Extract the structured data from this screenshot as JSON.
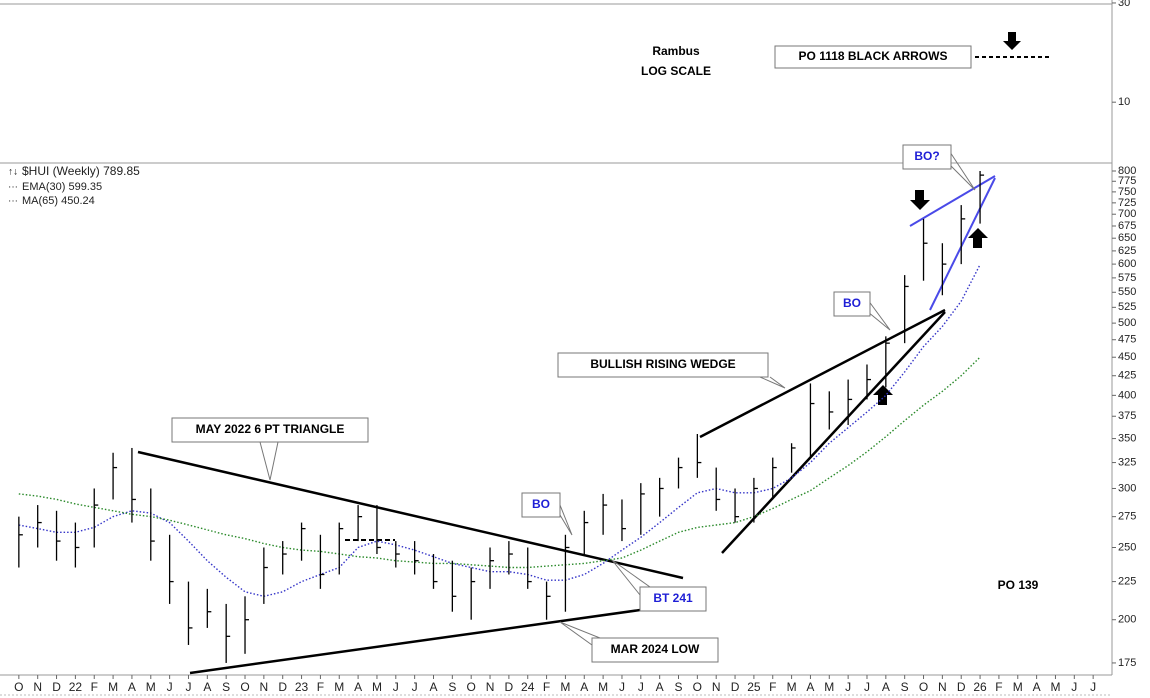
{
  "chart_data": [
    {
      "type": "indicator",
      "log_scale": true,
      "ylim": [
        5.1,
        31
      ],
      "yticks": [
        10,
        30
      ],
      "annotations": [
        "Rambus",
        "LOG SCALE",
        "PO 1118 BLACK ARROWS"
      ]
    },
    {
      "type": "hlc",
      "log_scale": true,
      "ylim": [
        168.6,
        820
      ],
      "yticks": [
        175,
        200,
        225,
        250,
        275,
        300,
        325,
        350,
        375,
        400,
        425,
        450,
        475,
        500,
        525,
        550,
        575,
        600,
        625,
        650,
        675,
        700,
        725,
        750,
        775,
        800
      ],
      "xlim": [
        "2021-09",
        "2026-08"
      ],
      "xticks": [
        {
          "value": "2021-10",
          "label": "O"
        },
        {
          "value": "2021-11",
          "label": "N"
        },
        {
          "value": "2021-12",
          "label": "D"
        },
        {
          "value": "2022-01",
          "label": "22"
        },
        {
          "value": "2022-02",
          "label": "F"
        },
        {
          "value": "2022-03",
          "label": "M"
        },
        {
          "value": "2022-04",
          "label": "A"
        },
        {
          "value": "2022-05",
          "label": "M"
        },
        {
          "value": "2022-06",
          "label": "J"
        },
        {
          "value": "2022-07",
          "label": "J"
        },
        {
          "value": "2022-08",
          "label": "A"
        },
        {
          "value": "2022-09",
          "label": "S"
        },
        {
          "value": "2022-10",
          "label": "O"
        },
        {
          "value": "2022-11",
          "label": "N"
        },
        {
          "value": "2022-12",
          "label": "D"
        },
        {
          "value": "2023-01",
          "label": "23"
        },
        {
          "value": "2023-02",
          "label": "F"
        },
        {
          "value": "2023-03",
          "label": "M"
        },
        {
          "value": "2023-04",
          "label": "A"
        },
        {
          "value": "2023-05",
          "label": "M"
        },
        {
          "value": "2023-06",
          "label": "J"
        },
        {
          "value": "2023-07",
          "label": "J"
        },
        {
          "value": "2023-08",
          "label": "A"
        },
        {
          "value": "2023-09",
          "label": "S"
        },
        {
          "value": "2023-10",
          "label": "O"
        },
        {
          "value": "2023-11",
          "label": "N"
        },
        {
          "value": "2023-12",
          "label": "D"
        },
        {
          "value": "2024-01",
          "label": "24"
        },
        {
          "value": "2024-02",
          "label": "F"
        },
        {
          "value": "2024-03",
          "label": "M"
        },
        {
          "value": "2024-04",
          "label": "A"
        },
        {
          "value": "2024-05",
          "label": "M"
        },
        {
          "value": "2024-06",
          "label": "J"
        },
        {
          "value": "2024-07",
          "label": "J"
        },
        {
          "value": "2024-08",
          "label": "A"
        },
        {
          "value": "2024-09",
          "label": "S"
        },
        {
          "value": "2024-10",
          "label": "O"
        },
        {
          "value": "2024-11",
          "label": "N"
        },
        {
          "value": "2024-12",
          "label": "D"
        },
        {
          "value": "2025-01",
          "label": "25"
        },
        {
          "value": "2025-02",
          "label": "F"
        },
        {
          "value": "2025-03",
          "label": "M"
        },
        {
          "value": "2025-04",
          "label": "A"
        },
        {
          "value": "2025-05",
          "label": "M"
        },
        {
          "value": "2025-06",
          "label": "J"
        },
        {
          "value": "2025-07",
          "label": "J"
        },
        {
          "value": "2025-08",
          "label": "A"
        },
        {
          "value": "2025-09",
          "label": "S"
        },
        {
          "value": "2025-10",
          "label": "O"
        },
        {
          "value": "2025-11",
          "label": "N"
        },
        {
          "value": "2025-12",
          "label": "D"
        },
        {
          "value": "2026-01",
          "label": "26"
        },
        {
          "value": "2026-02",
          "label": "F"
        },
        {
          "value": "2026-03",
          "label": "M"
        },
        {
          "value": "2026-04",
          "label": "A"
        },
        {
          "value": "2026-05",
          "label": "M"
        },
        {
          "value": "2026-06",
          "label": "J"
        },
        {
          "value": "2026-07",
          "label": "J"
        }
      ],
      "x": [
        "2021-10",
        "2021-11",
        "2021-12",
        "2022-01",
        "2022-02",
        "2022-03",
        "2022-04",
        "2022-05",
        "2022-06",
        "2022-07",
        "2022-08",
        "2022-09",
        "2022-10",
        "2022-11",
        "2022-12",
        "2023-01",
        "2023-02",
        "2023-03",
        "2023-04",
        "2023-05",
        "2023-06",
        "2023-07",
        "2023-08",
        "2023-09",
        "2023-10",
        "2023-11",
        "2023-12",
        "2024-01",
        "2024-02",
        "2024-03",
        "2024-04",
        "2024-05",
        "2024-06",
        "2024-07",
        "2024-08",
        "2024-09",
        "2024-10",
        "2024-11",
        "2024-12",
        "2025-01",
        "2025-02",
        "2025-03",
        "2025-04",
        "2025-05",
        "2025-06",
        "2025-07",
        "2025-08",
        "2025-09",
        "2025-10",
        "2025-11",
        "2025-12",
        "2026-01"
      ],
      "price": {
        "name": "$HUI (Weekly) 789.85",
        "color": "#000000",
        "high": [
          275,
          285,
          280,
          270,
          300,
          335,
          340,
          300,
          260,
          225,
          220,
          210,
          215,
          250,
          255,
          270,
          260,
          270,
          285,
          285,
          255,
          255,
          245,
          240,
          235,
          250,
          255,
          250,
          225,
          260,
          280,
          295,
          290,
          305,
          310,
          330,
          355,
          320,
          300,
          310,
          330,
          345,
          415,
          405,
          420,
          440,
          480,
          580,
          690,
          640,
          720,
          800
        ],
        "low": [
          235,
          250,
          240,
          235,
          250,
          290,
          270,
          240,
          210,
          185,
          195,
          175,
          180,
          210,
          230,
          240,
          220,
          230,
          255,
          245,
          235,
          230,
          220,
          205,
          200,
          220,
          230,
          220,
          200,
          205,
          245,
          260,
          255,
          260,
          275,
          300,
          310,
          280,
          270,
          270,
          290,
          315,
          330,
          360,
          365,
          395,
          410,
          470,
          570,
          545,
          600,
          680
        ],
        "close": [
          260,
          270,
          255,
          250,
          285,
          320,
          290,
          255,
          225,
          195,
          205,
          190,
          200,
          235,
          245,
          265,
          230,
          265,
          275,
          250,
          245,
          240,
          225,
          215,
          225,
          240,
          245,
          225,
          215,
          250,
          270,
          285,
          265,
          295,
          300,
          320,
          325,
          290,
          275,
          300,
          320,
          340,
          390,
          380,
          395,
          420,
          470,
          560,
          640,
          600,
          690,
          789.85
        ]
      },
      "series": [
        {
          "name": "EMA(30) 599.35",
          "color": "#3535c8",
          "values": [
            268,
            265,
            262,
            262,
            266,
            275,
            280,
            278,
            270,
            255,
            240,
            228,
            218,
            215,
            218,
            225,
            230,
            235,
            250,
            255,
            252,
            248,
            243,
            238,
            235,
            232,
            232,
            230,
            226,
            226,
            230,
            238,
            248,
            258,
            270,
            283,
            296,
            300,
            296,
            296,
            300,
            310,
            325,
            345,
            362,
            380,
            400,
            430,
            465,
            495,
            535,
            599.35
          ]
        },
        {
          "name": "MA(65) 450.24",
          "color": "#2b8a2b",
          "values": [
            295,
            293,
            290,
            286,
            283,
            280,
            277,
            275,
            272,
            268,
            264,
            260,
            257,
            253,
            250,
            248,
            247,
            245,
            243,
            242,
            240,
            239,
            238,
            238,
            237,
            236,
            235,
            235,
            236,
            237,
            238,
            240,
            242,
            248,
            255,
            262,
            266,
            268,
            270,
            275,
            282,
            290,
            298,
            310,
            322,
            336,
            352,
            370,
            388,
            405,
            425,
            450.24
          ]
        }
      ],
      "annotations": [
        "MAY 2022 6 PT TRIANGLE",
        "BULLISH RISING WEDGE",
        "BO",
        "BT 241",
        "MAR 2024 LOW",
        "BO",
        "BO?",
        "PO 139"
      ]
    }
  ]
}
